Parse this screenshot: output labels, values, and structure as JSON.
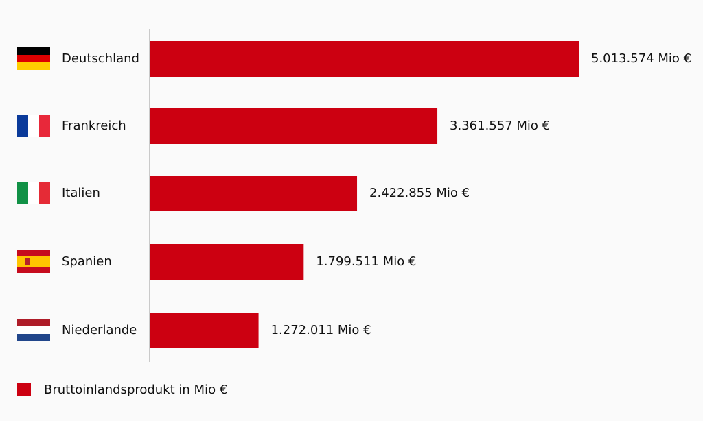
{
  "chart_data": {
    "type": "bar",
    "orientation": "horizontal",
    "categories": [
      "Deutschland",
      "Frankreich",
      "Italien",
      "Spanien",
      "Niederlande"
    ],
    "series": [
      {
        "name": "Bruttoinlandsprodukt in Mio €",
        "color": "#cc0011",
        "values": [
          5013574,
          3361557,
          2422855,
          1799511,
          1272011
        ],
        "value_labels": [
          "5.013.574 Mio €",
          "3.361.557 Mio €",
          "2.422.855 Mio €",
          "1.799.511 Mio €",
          "1.272.011 Mio €"
        ]
      }
    ],
    "legend": "bottom-left"
  }
}
